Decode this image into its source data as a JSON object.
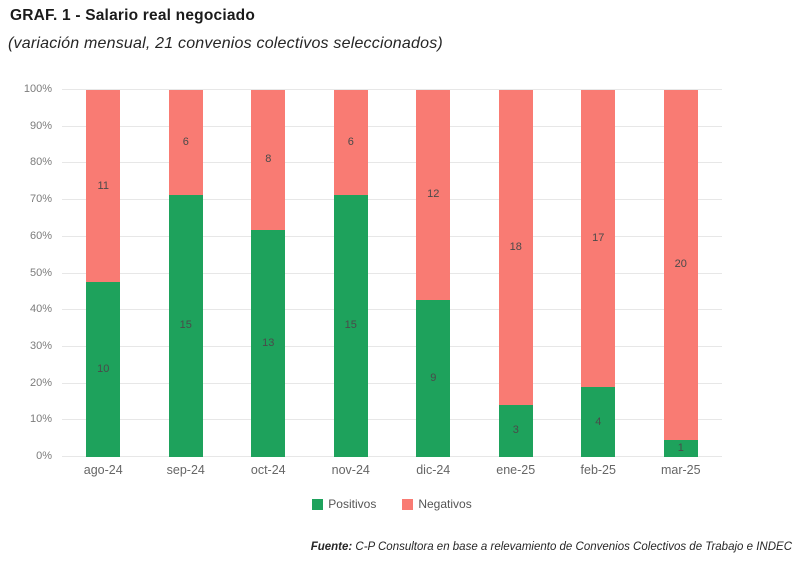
{
  "page": {
    "title": "GRAF. 1 - Salario real negociado",
    "subtitle": "(variación mensual, 21 convenios colectivos seleccionados)",
    "source_label": "Fuente:",
    "source_text": " C-P Consultora en base a relevamiento de Convenios Colectivos de Trabajo e INDEC"
  },
  "chart_data": {
    "type": "bar",
    "stacked": true,
    "percent_normalized": true,
    "title": "GRAF. 1 - Salario real negociado",
    "subtitle": "(variación mensual, 21 convenios colectivos seleccionados)",
    "categories": [
      "ago-24",
      "sep-24",
      "oct-24",
      "nov-24",
      "dic-24",
      "ene-25",
      "feb-25",
      "mar-25"
    ],
    "series": [
      {
        "name": "Positivos",
        "color": "#1EA25C",
        "values": [
          10,
          15,
          13,
          15,
          9,
          3,
          4,
          1
        ]
      },
      {
        "name": "Negativos",
        "color": "#F97B73",
        "values": [
          11,
          6,
          8,
          6,
          12,
          18,
          17,
          20
        ]
      }
    ],
    "total_per_category": 21,
    "y_ticks": [
      "0%",
      "10%",
      "20%",
      "30%",
      "40%",
      "50%",
      "60%",
      "70%",
      "80%",
      "90%",
      "100%"
    ],
    "ylim": [
      0,
      100
    ],
    "grid": true,
    "gridline_color": "#e7e7e7",
    "legend_position": "bottom",
    "xlabel": "",
    "ylabel": ""
  }
}
